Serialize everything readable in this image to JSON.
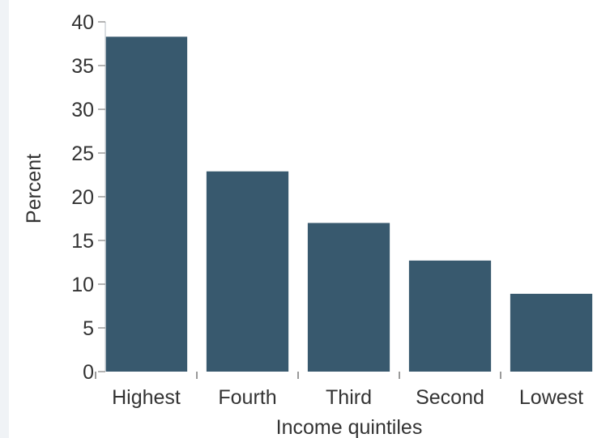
{
  "chart_data": {
    "type": "bar",
    "categories": [
      "Highest",
      "Fourth",
      "Third",
      "Second",
      "Lowest"
    ],
    "values": [
      38.3,
      22.9,
      17.0,
      12.7,
      8.9
    ],
    "xlabel": "Income quintiles",
    "ylabel": "Percent",
    "ylim": [
      0,
      40
    ],
    "yticks": [
      0,
      5,
      10,
      15,
      20,
      25,
      30,
      35,
      40
    ],
    "grid": false,
    "legend": "none",
    "bar_color": "#38596e",
    "axis_color": "#9a9a9a"
  }
}
